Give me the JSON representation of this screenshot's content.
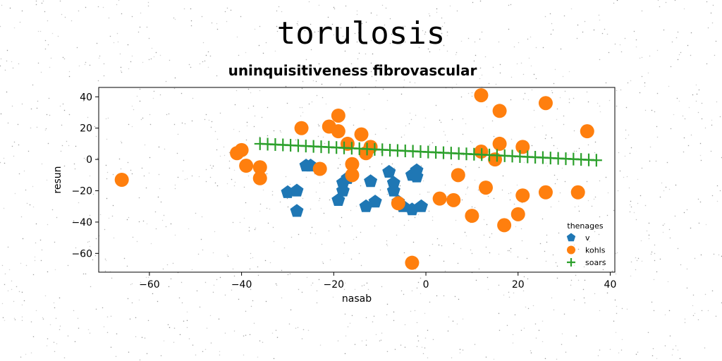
{
  "title": "torulosis",
  "subtitle": "uninquisitiveness fibrovascular",
  "chart_data": {
    "type": "scatter",
    "xlabel": "nasab",
    "ylabel": "resun",
    "xlim": [
      -71,
      41
    ],
    "ylim": [
      -72,
      46
    ],
    "xticks": [
      -60,
      -40,
      -20,
      0,
      20,
      40
    ],
    "yticks": [
      -60,
      -40,
      -20,
      0,
      20,
      40
    ],
    "legend": {
      "title": "thenages",
      "placement": "lower-right"
    },
    "series": [
      {
        "name": "v",
        "marker": "pentagon",
        "color": "#1f77b4",
        "points": [
          [
            -30,
            -21
          ],
          [
            -28,
            -20
          ],
          [
            -28,
            -33
          ],
          [
            -26,
            -4
          ],
          [
            -25,
            -4
          ],
          [
            -19,
            -26
          ],
          [
            -18,
            -20
          ],
          [
            -18,
            -15
          ],
          [
            -17,
            -12
          ],
          [
            -13,
            -30
          ],
          [
            -12,
            -14
          ],
          [
            -11,
            -27
          ],
          [
            -8,
            -8
          ],
          [
            -7,
            -15
          ],
          [
            -7,
            -20
          ],
          [
            -6,
            -27
          ],
          [
            -5,
            -30
          ],
          [
            -3,
            -32
          ],
          [
            -3,
            -10
          ],
          [
            -2,
            -7
          ],
          [
            -2,
            -11
          ],
          [
            -1,
            -30
          ]
        ]
      },
      {
        "name": "kohls",
        "marker": "circle",
        "color": "#ff7f0e",
        "points": [
          [
            -66,
            -13
          ],
          [
            -41,
            4
          ],
          [
            -40,
            6
          ],
          [
            -39,
            -4
          ],
          [
            -36,
            -5
          ],
          [
            -36,
            -12
          ],
          [
            -27,
            20
          ],
          [
            -23,
            -6
          ],
          [
            -21,
            21
          ],
          [
            -19,
            28
          ],
          [
            -19,
            18
          ],
          [
            -17,
            10
          ],
          [
            -16,
            -3
          ],
          [
            -16,
            -10
          ],
          [
            -14,
            16
          ],
          [
            -13,
            4
          ],
          [
            -12,
            8
          ],
          [
            -6,
            -28
          ],
          [
            -3,
            -66
          ],
          [
            3,
            -25
          ],
          [
            6,
            -26
          ],
          [
            7,
            -10
          ],
          [
            10,
            -36
          ],
          [
            12,
            41
          ],
          [
            12,
            5
          ],
          [
            13,
            -18
          ],
          [
            15,
            0
          ],
          [
            16,
            31
          ],
          [
            16,
            10
          ],
          [
            17,
            -42
          ],
          [
            20,
            -35
          ],
          [
            21,
            8
          ],
          [
            21,
            -23
          ],
          [
            26,
            36
          ],
          [
            26,
            -21
          ],
          [
            33,
            -21
          ],
          [
            35,
            18
          ]
        ]
      },
      {
        "name": "soars",
        "marker": "plus",
        "color": "#2ca02c",
        "line": true,
        "x_start": -36,
        "x_end": 37,
        "y_start": 10,
        "y_end": -0.5,
        "count": 45
      }
    ]
  }
}
